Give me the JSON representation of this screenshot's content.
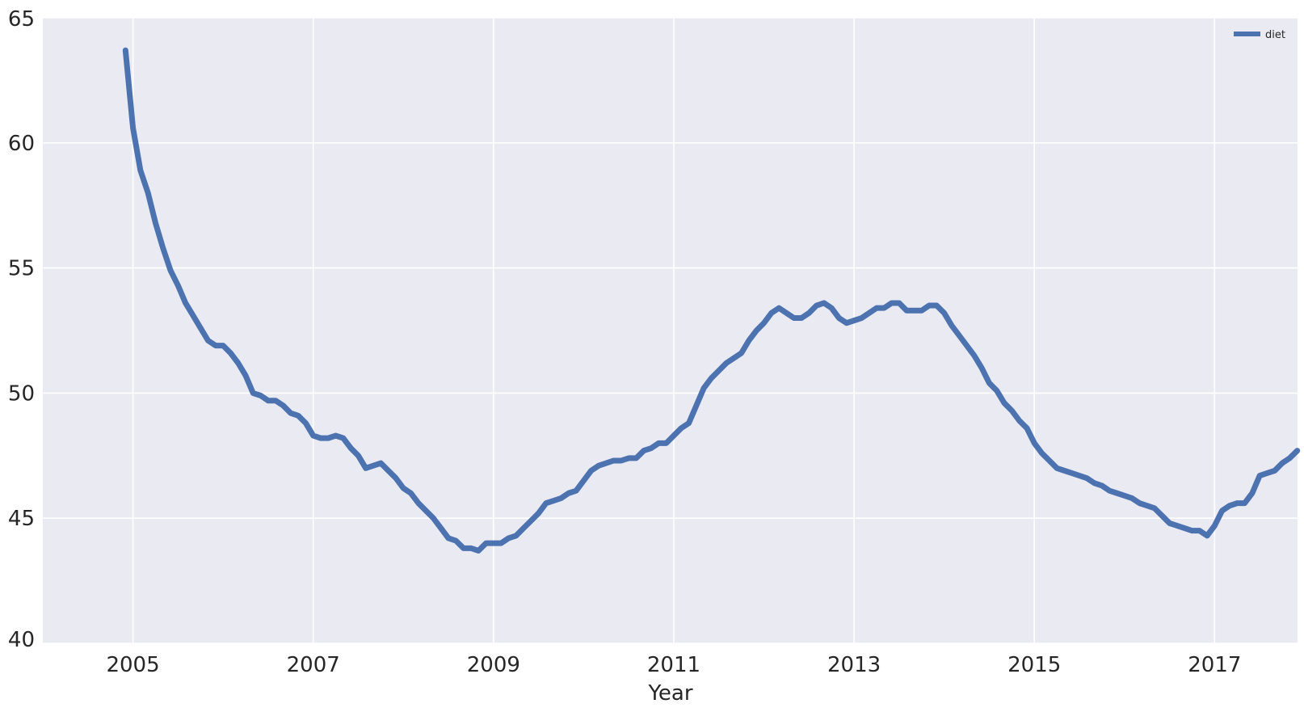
{
  "chart_data": {
    "type": "line",
    "title": "",
    "xlabel": "Year",
    "ylabel": "",
    "xlim": [
      2004.0,
      2017.92
    ],
    "ylim": [
      40,
      65
    ],
    "x_ticks": [
      2005,
      2007,
      2009,
      2011,
      2013,
      2015,
      2017
    ],
    "x_tick_labels": [
      "2005",
      "2007",
      "2009",
      "2011",
      "2013",
      "2015",
      "2017"
    ],
    "y_ticks": [
      40,
      45,
      50,
      55,
      60,
      65
    ],
    "y_tick_labels": [
      "40",
      "45",
      "50",
      "55",
      "60",
      "65"
    ],
    "grid": true,
    "legend_position": "top-right",
    "series": [
      {
        "name": "diet",
        "color": "#4c72b0",
        "x": [
          2004.917,
          2005.0,
          2005.083,
          2005.167,
          2005.25,
          2005.333,
          2005.417,
          2005.5,
          2005.583,
          2005.667,
          2005.75,
          2005.833,
          2005.917,
          2006.0,
          2006.083,
          2006.167,
          2006.25,
          2006.333,
          2006.417,
          2006.5,
          2006.583,
          2006.667,
          2006.75,
          2006.833,
          2006.917,
          2007.0,
          2007.083,
          2007.167,
          2007.25,
          2007.333,
          2007.417,
          2007.5,
          2007.583,
          2007.667,
          2007.75,
          2007.833,
          2007.917,
          2008.0,
          2008.083,
          2008.167,
          2008.25,
          2008.333,
          2008.417,
          2008.5,
          2008.583,
          2008.667,
          2008.75,
          2008.833,
          2008.917,
          2009.0,
          2009.083,
          2009.167,
          2009.25,
          2009.333,
          2009.417,
          2009.5,
          2009.583,
          2009.667,
          2009.75,
          2009.833,
          2009.917,
          2010.0,
          2010.083,
          2010.167,
          2010.25,
          2010.333,
          2010.417,
          2010.5,
          2010.583,
          2010.667,
          2010.75,
          2010.833,
          2010.917,
          2011.0,
          2011.083,
          2011.167,
          2011.25,
          2011.333,
          2011.417,
          2011.5,
          2011.583,
          2011.667,
          2011.75,
          2011.833,
          2011.917,
          2012.0,
          2012.083,
          2012.167,
          2012.25,
          2012.333,
          2012.417,
          2012.5,
          2012.583,
          2012.667,
          2012.75,
          2012.833,
          2012.917,
          2013.0,
          2013.083,
          2013.167,
          2013.25,
          2013.333,
          2013.417,
          2013.5,
          2013.583,
          2013.667,
          2013.75,
          2013.833,
          2013.917,
          2014.0,
          2014.083,
          2014.167,
          2014.25,
          2014.333,
          2014.417,
          2014.5,
          2014.583,
          2014.667,
          2014.75,
          2014.833,
          2014.917,
          2015.0,
          2015.083,
          2015.167,
          2015.25,
          2015.333,
          2015.417,
          2015.5,
          2015.583,
          2015.667,
          2015.75,
          2015.833,
          2015.917,
          2016.0,
          2016.083,
          2016.167,
          2016.25,
          2016.333,
          2016.417,
          2016.5,
          2016.583,
          2016.667,
          2016.75,
          2016.833,
          2016.917,
          2017.0,
          2017.083,
          2017.167,
          2017.25,
          2017.333,
          2017.417,
          2017.5,
          2017.583,
          2017.667,
          2017.75,
          2017.833,
          2017.917
        ],
        "y": [
          63.7,
          60.6,
          58.9,
          58.0,
          56.8,
          55.8,
          54.9,
          54.3,
          53.6,
          53.1,
          52.6,
          52.1,
          51.9,
          51.9,
          51.6,
          51.2,
          50.7,
          50.0,
          49.9,
          49.7,
          49.7,
          49.5,
          49.2,
          49.1,
          48.8,
          48.3,
          48.2,
          48.2,
          48.3,
          48.2,
          47.8,
          47.5,
          47.0,
          47.1,
          47.2,
          46.9,
          46.6,
          46.2,
          46.0,
          45.6,
          45.3,
          45.0,
          44.6,
          44.2,
          44.1,
          43.8,
          43.8,
          43.7,
          44.0,
          44.0,
          44.0,
          44.2,
          44.3,
          44.6,
          44.9,
          45.2,
          45.6,
          45.7,
          45.8,
          46.0,
          46.1,
          46.5,
          46.9,
          47.1,
          47.2,
          47.3,
          47.3,
          47.4,
          47.4,
          47.7,
          47.8,
          48.0,
          48.0,
          48.3,
          48.6,
          48.8,
          49.5,
          50.2,
          50.6,
          50.9,
          51.2,
          51.4,
          51.6,
          52.1,
          52.5,
          52.8,
          53.2,
          53.4,
          53.2,
          53.0,
          53.0,
          53.2,
          53.5,
          53.6,
          53.4,
          53.0,
          52.8,
          52.9,
          53.0,
          53.2,
          53.4,
          53.4,
          53.6,
          53.6,
          53.3,
          53.3,
          53.3,
          53.5,
          53.5,
          53.2,
          52.7,
          52.3,
          51.9,
          51.5,
          51.0,
          50.4,
          50.1,
          49.6,
          49.3,
          48.9,
          48.6,
          48.0,
          47.6,
          47.3,
          47.0,
          46.9,
          46.8,
          46.7,
          46.6,
          46.4,
          46.3,
          46.1,
          46.0,
          45.9,
          45.8,
          45.6,
          45.5,
          45.4,
          45.1,
          44.8,
          44.7,
          44.6,
          44.5,
          44.5,
          44.3,
          44.7,
          45.3,
          45.5,
          45.6,
          45.6,
          46.0,
          46.7,
          46.8,
          46.9,
          47.2,
          47.4,
          47.7
        ]
      }
    ]
  }
}
